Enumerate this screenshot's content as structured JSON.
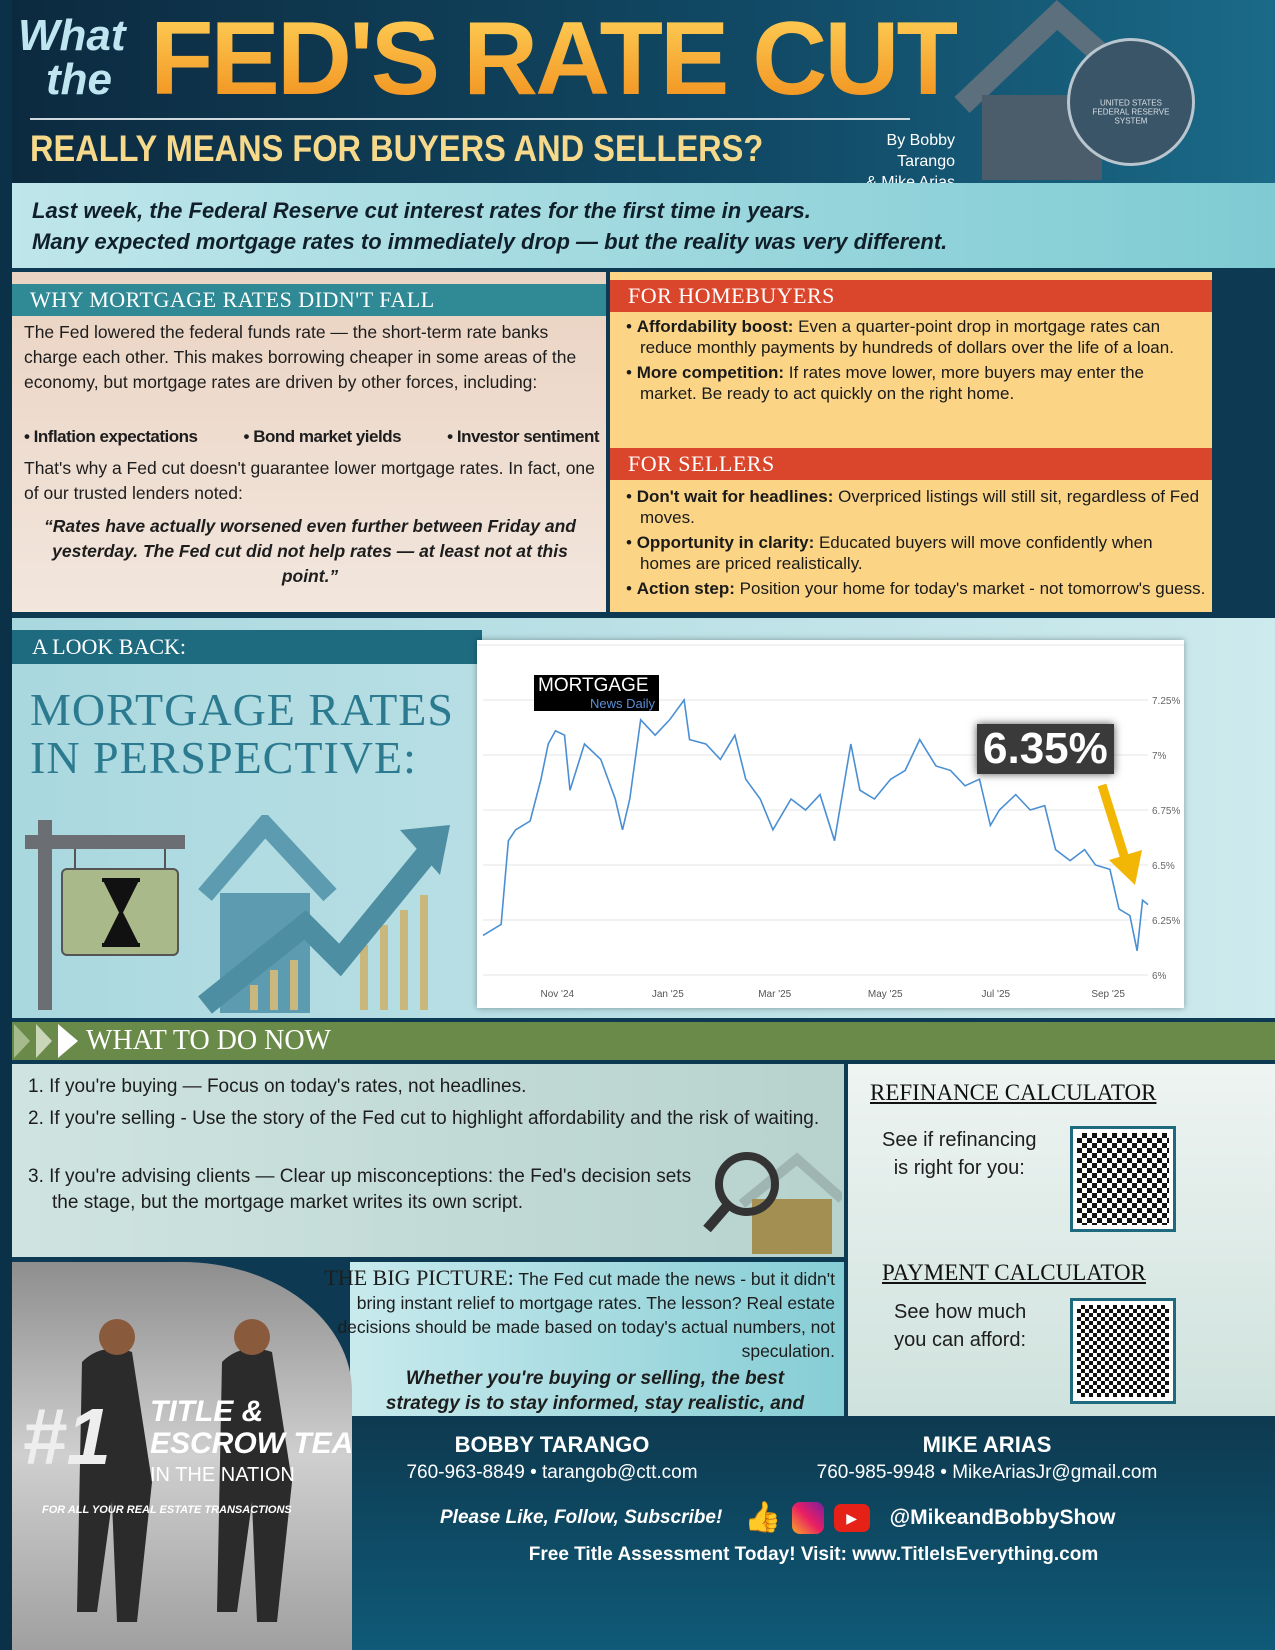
{
  "header": {
    "what": "What",
    "the": "the",
    "title": "FED'S RATE CUT",
    "subtitle": "REALLY MEANS FOR BUYERS AND SELLERS?",
    "byline_1": "By Bobby Tarango",
    "byline_2": "& Mike Arias",
    "seal": "UNITED STATES FEDERAL RESERVE SYSTEM"
  },
  "intro": {
    "line1": "Last week, the Federal Reserve cut interest rates for the first time in years.",
    "line2": "Many expected mortgage rates to immediately drop — but the reality was very different."
  },
  "why": {
    "heading": "WHY MORTGAGE RATES DIDN'T FALL",
    "para1": "The Fed lowered the federal funds rate — the short-term rate banks charge each other. This makes borrowing cheaper in some areas of the economy, but mortgage rates are driven by other forces, including:",
    "bullets": [
      "• Inflation expectations",
      "• Bond market yields",
      "• Investor sentiment"
    ],
    "para2": "That's why a Fed cut doesn't guarantee lower mortgage rates. In fact, one of our trusted lenders noted:",
    "quote": "“Rates have actually worsened even further between Friday and yesterday. The Fed cut did not help rates — at least not at this point.”"
  },
  "buyers": {
    "heading": "FOR HOMEBUYERS",
    "items": [
      {
        "bold": "Affordability boost:",
        "text": " Even a quarter-point drop in mortgage rates can reduce monthly payments by hundreds of dollars over the life of a loan."
      },
      {
        "bold": "More competition:",
        "text": " If rates move lower, more buyers may enter the market. Be ready to act quickly on the right home."
      }
    ]
  },
  "sellers": {
    "heading": "FOR SELLERS",
    "items": [
      {
        "bold": "Don't wait for headlines:",
        "text": " Overpriced listings will still sit, regardless of Fed moves."
      },
      {
        "bold": "Opportunity in clarity:",
        "text": " Educated buyers will move confidently when homes are priced realistically."
      },
      {
        "bold": "Action step:",
        "text": " Position your home for today's market - not tomorrow's guess."
      }
    ]
  },
  "lookback": {
    "bar": "A LOOK BACK:",
    "title1": "MORTGAGE RATES",
    "title2": "IN PERSPECTIVE:"
  },
  "chart_data": {
    "type": "line",
    "source_logo": "MORTGAGE News Daily",
    "callout": "6.35%",
    "ylim": [
      6,
      7.25
    ],
    "yticks": [
      "6%",
      "6.25%",
      "6.5%",
      "6.75%",
      "7%",
      "7.25%"
    ],
    "ytick_values": [
      6,
      6.25,
      6.5,
      6.75,
      7,
      7.25
    ],
    "xticks": [
      {
        "label": "Nov '24",
        "date": "2024-11-01"
      },
      {
        "label": "Jan '25",
        "date": "2025-01-01"
      },
      {
        "label": "Mar '25",
        "date": "2025-03-01"
      },
      {
        "label": "May '25",
        "date": "2025-05-01"
      },
      {
        "label": "Jul '25",
        "date": "2025-07-01"
      },
      {
        "label": "Sep '25",
        "date": "2025-09-01"
      }
    ],
    "grid": true,
    "line_color": "#4a8fd4",
    "points": [
      [
        "2024-09-21",
        6.18
      ],
      [
        "2024-10-01",
        6.23
      ],
      [
        "2024-10-05",
        6.61
      ],
      [
        "2024-10-09",
        6.66
      ],
      [
        "2024-10-17",
        6.7
      ],
      [
        "2024-10-23",
        6.89
      ],
      [
        "2024-10-27",
        7.05
      ],
      [
        "2024-10-31",
        7.11
      ],
      [
        "2024-11-05",
        7.09
      ],
      [
        "2024-11-08",
        6.84
      ],
      [
        "2024-11-16",
        7.05
      ],
      [
        "2024-11-25",
        6.98
      ],
      [
        "2024-12-03",
        6.8
      ],
      [
        "2024-12-07",
        6.66
      ],
      [
        "2024-12-11",
        6.8
      ],
      [
        "2024-12-17",
        7.16
      ],
      [
        "2024-12-25",
        7.09
      ],
      [
        "2025-01-02",
        7.16
      ],
      [
        "2025-01-10",
        7.25
      ],
      [
        "2025-01-13",
        7.07
      ],
      [
        "2025-01-22",
        7.05
      ],
      [
        "2025-01-30",
        6.98
      ],
      [
        "2025-02-07",
        7.09
      ],
      [
        "2025-02-13",
        6.89
      ],
      [
        "2025-02-21",
        6.8
      ],
      [
        "2025-02-28",
        6.66
      ],
      [
        "2025-03-10",
        6.8
      ],
      [
        "2025-03-18",
        6.75
      ],
      [
        "2025-03-26",
        6.82
      ],
      [
        "2025-04-03",
        6.61
      ],
      [
        "2025-04-12",
        7.05
      ],
      [
        "2025-04-17",
        6.84
      ],
      [
        "2025-04-25",
        6.8
      ],
      [
        "2025-05-04",
        6.89
      ],
      [
        "2025-05-12",
        6.93
      ],
      [
        "2025-05-20",
        7.07
      ],
      [
        "2025-05-29",
        6.95
      ],
      [
        "2025-06-06",
        6.93
      ],
      [
        "2025-06-14",
        6.86
      ],
      [
        "2025-06-22",
        6.89
      ],
      [
        "2025-06-28",
        6.68
      ],
      [
        "2025-07-03",
        6.75
      ],
      [
        "2025-07-12",
        6.82
      ],
      [
        "2025-07-20",
        6.75
      ],
      [
        "2025-07-28",
        6.77
      ],
      [
        "2025-08-03",
        6.57
      ],
      [
        "2025-08-11",
        6.52
      ],
      [
        "2025-08-19",
        6.57
      ],
      [
        "2025-08-25",
        6.5
      ],
      [
        "2025-09-02",
        6.48
      ],
      [
        "2025-09-07",
        6.3
      ],
      [
        "2025-09-13",
        6.27
      ],
      [
        "2025-09-17",
        6.11
      ],
      [
        "2025-09-20",
        6.34
      ],
      [
        "2025-09-23",
        6.32
      ]
    ]
  },
  "todo": {
    "heading": "WHAT TO DO NOW",
    "items": [
      "1.  If you're buying — Focus on today's rates, not headlines.",
      "2.  If you're selling - Use the story of the Fed cut to highlight affordability and the risk of waiting.",
      "3.  If you're advising clients — Clear up misconceptions: the Fed's decision sets the stage, but the mortgage market writes its own script."
    ]
  },
  "refi": {
    "heading": "REFINANCE CALCULATOR",
    "line1": "See if refinancing",
    "line2": "is right for you:"
  },
  "payment": {
    "heading": "PAYMENT CALCULATOR",
    "line1": "See how much",
    "line2": "you can afford:"
  },
  "bigpicture": {
    "lead": "THE BIG PICTURE:",
    "text": " The Fed cut made the news - but it didn't bring instant relief to mortgage rates. The lesson? Real estate decisions should be made based on today's actual numbers, not speculation.",
    "closing": "Whether you're buying or selling, the best strategy is to stay informed, stay realistic, and stay ready."
  },
  "badge": {
    "num": "#1",
    "line1": "TITLE &",
    "line2": "ESCROW TEAM",
    "line3": "IN THE NATION",
    "line4": "FOR ALL YOUR REAL ESTATE TRANSACTIONS"
  },
  "footer": {
    "name1": "BOBBY TARANGO",
    "contact1": "760-963-8849 • tarangob@ctt.com",
    "name2": "MIKE ARIAS",
    "contact2": "760-985-9948 • MikeAriasJr@gmail.com",
    "social_cta": "Please Like, Follow, Subscribe!",
    "handle": "@MikeandBobbyShow",
    "visit": "Free Title Assessment Today! Visit: www.TitleIsEverything.com"
  }
}
